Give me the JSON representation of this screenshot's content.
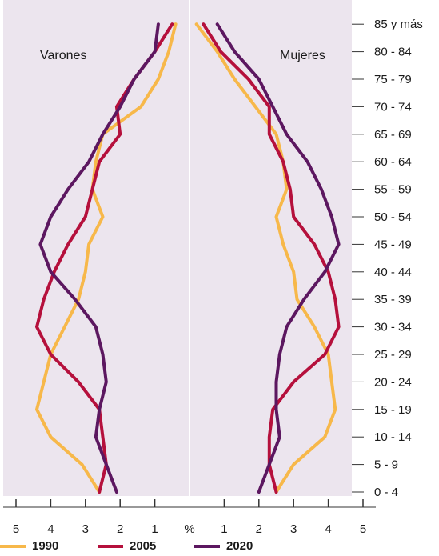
{
  "chart_data": {
    "type": "line",
    "subtype": "population-pyramid",
    "left_panel_label": "Varones",
    "right_panel_label": "Mujeres",
    "x_tick_labels": [
      "5",
      "4",
      "3",
      "2",
      "1",
      "%",
      "1",
      "2",
      "3",
      "4",
      "5"
    ],
    "xlim": [
      0,
      5
    ],
    "categories": [
      "0 - 4",
      "5 - 9",
      "10 - 14",
      "15 - 19",
      "20 - 24",
      "25 - 29",
      "30 - 34",
      "35 - 39",
      "40 - 44",
      "45 - 49",
      "50 - 54",
      "55 - 59",
      "60 - 64",
      "65 - 69",
      "70 - 74",
      "75 - 79",
      "80 - 84",
      "85 y más"
    ],
    "grid": false,
    "legend_position": "bottom",
    "background": "#ece5ee",
    "series": [
      {
        "name": "1990",
        "color": "#f7b84a",
        "male": [
          2.6,
          3.1,
          4.0,
          4.4,
          4.2,
          4.0,
          3.6,
          3.2,
          3.0,
          2.9,
          2.5,
          2.8,
          2.7,
          2.5,
          1.4,
          0.9,
          0.6,
          0.4
        ],
        "female": [
          2.5,
          3.0,
          3.9,
          4.2,
          4.1,
          4.0,
          3.6,
          3.1,
          3.0,
          2.7,
          2.5,
          2.8,
          2.7,
          2.5,
          1.9,
          1.3,
          0.8,
          0.2
        ]
      },
      {
        "name": "2005",
        "color": "#b5103c",
        "male": [
          2.6,
          2.4,
          2.5,
          2.6,
          3.2,
          4.0,
          4.4,
          4.2,
          3.9,
          3.5,
          3.0,
          2.8,
          2.6,
          2.0,
          2.1,
          1.6,
          1.0,
          0.5
        ],
        "female": [
          2.5,
          2.3,
          2.3,
          2.4,
          3.0,
          3.9,
          4.3,
          4.2,
          4.0,
          3.6,
          3.0,
          2.9,
          2.7,
          2.3,
          2.3,
          1.7,
          0.9,
          0.4
        ]
      },
      {
        "name": "2020",
        "color": "#5c1760",
        "male": [
          2.1,
          2.4,
          2.7,
          2.6,
          2.4,
          2.5,
          2.7,
          3.3,
          4.0,
          4.3,
          4.0,
          3.5,
          2.9,
          2.5,
          2.0,
          1.6,
          1.0,
          0.9
        ],
        "female": [
          2.0,
          2.3,
          2.6,
          2.5,
          2.5,
          2.6,
          2.8,
          3.3,
          3.9,
          4.3,
          4.1,
          3.8,
          3.4,
          2.8,
          2.4,
          2.0,
          1.3,
          0.8
        ]
      }
    ]
  }
}
